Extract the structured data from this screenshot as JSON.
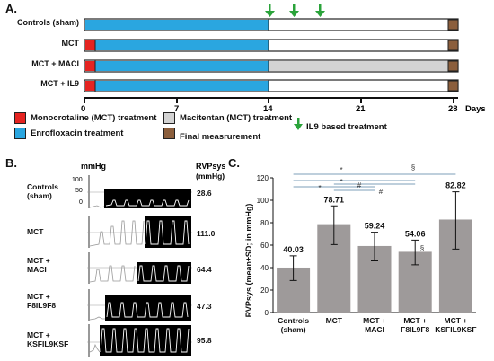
{
  "panelA": {
    "letter": "A.",
    "groups": [
      "Controls (sham)",
      "MCT",
      "MCT + MACI",
      "MCT + IL9"
    ],
    "ticks": [
      "0",
      "7",
      "14",
      "21",
      "28"
    ],
    "axis_unit": "Days",
    "legend": [
      {
        "label": "Monocrotaline (MCT) treatment",
        "color": "#e52421"
      },
      {
        "label": "Enrofloxacin treatment",
        "color": "#2aa6e0"
      },
      {
        "label": "Macitentan (MCT) treatment",
        "color": "#d3d3d3"
      },
      {
        "label": "Final measrurement",
        "color": "#8b5e3c"
      },
      {
        "label": "IL9 based treatment",
        "color": "#2aa33a"
      }
    ]
  },
  "panelB": {
    "letter": "B.",
    "unit": "mmHg",
    "col_header": "RVPsys",
    "col_unit": "(mmHg)",
    "scale_labels": [
      "100",
      "50",
      "0"
    ],
    "traces": [
      {
        "label_line1": "Controls",
        "label_line2": "(sham)",
        "value": "28.6"
      },
      {
        "label_line1": "MCT",
        "label_line2": "",
        "value": "111.0"
      },
      {
        "label_line1": "MCT +",
        "label_line2": "MACI",
        "value": "64.4"
      },
      {
        "label_line1": "MCT +",
        "label_line2": "F8IL9F8",
        "value": "47.3"
      },
      {
        "label_line1": "MCT +",
        "label_line2": "KSFIL9KSF",
        "value": "95.8"
      }
    ]
  },
  "panelC": {
    "letter": "C.",
    "chart_data": {
      "type": "bar",
      "categories": [
        "Controls (sham)",
        "MCT",
        "MCT + MACI",
        "MCT + F8IL9F8",
        "MCT + KSFIL9KSF"
      ],
      "values": [
        40.03,
        78.71,
        59.24,
        54.06,
        82.82
      ],
      "value_labels": [
        "40.03",
        "78.71",
        "59.24",
        "54.06",
        "82.82"
      ],
      "error_low": [
        28.5,
        60.5,
        46.0,
        42.5,
        56.5
      ],
      "error_high": [
        50.5,
        95.0,
        71.5,
        64.5,
        107.5
      ],
      "ylabel": "RVPsys (mean±SD; in mmHg)",
      "ylim": [
        0,
        120
      ],
      "yticks": [
        "0",
        "20",
        "40",
        "60",
        "80",
        "100",
        "120"
      ],
      "bar_color": "#9e9a9a",
      "significance_marks": [
        "*",
        "*",
        "*",
        "#",
        "#",
        "§",
        "§"
      ]
    }
  }
}
